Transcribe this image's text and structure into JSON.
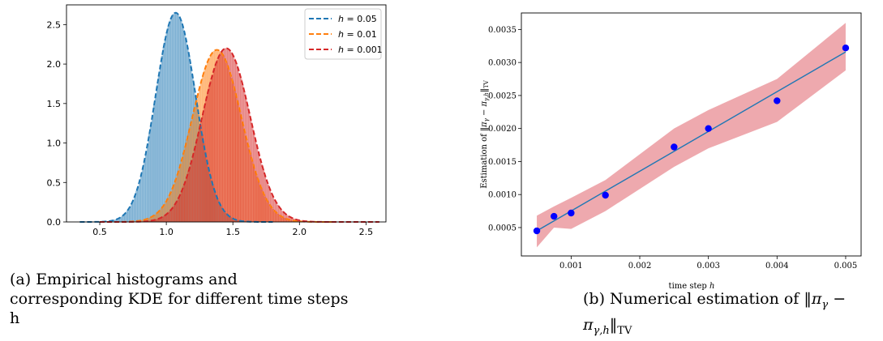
{
  "chart_data": [
    {
      "type": "area",
      "caption": "(a) Empirical histograms and corresponding KDE for different time steps h",
      "xlim": [
        0.25,
        2.65
      ],
      "ylim": [
        0,
        2.75
      ],
      "xticks": [
        "0.5",
        "1.0",
        "1.5",
        "2.0",
        "2.5"
      ],
      "yticks": [
        "0.0",
        "0.5",
        "1.0",
        "1.5",
        "2.0",
        "2.5"
      ],
      "legend_position": "top-right",
      "series": [
        {
          "name": "h = 0.05",
          "h": "0.05",
          "color": "#1f77b4",
          "mean": 1.07,
          "std": 0.15,
          "peak": 2.65,
          "support": [
            0.35,
            1.8
          ]
        },
        {
          "name": "h = 0.01",
          "h": "0.01",
          "color": "#ff7f0e",
          "mean": 1.38,
          "std": 0.185,
          "peak": 2.18,
          "support": [
            0.5,
            2.25
          ]
        },
        {
          "name": "h = 0.001",
          "h": "0.001",
          "color": "#d62728",
          "mean": 1.45,
          "std": 0.18,
          "peak": 2.2,
          "support": [
            0.5,
            2.6
          ]
        }
      ]
    },
    {
      "type": "line",
      "caption_prefix": "(b) Numerical estimation of",
      "xlabel": "time step",
      "xlabel_var": "h",
      "xlim": [
        0.000275,
        0.005225
      ],
      "ylim": [
        7e-05,
        0.00375
      ],
      "xticks": [
        "0.001",
        "0.002",
        "0.003",
        "0.004",
        "0.005"
      ],
      "yticks": [
        "0.0005",
        "0.0010",
        "0.0015",
        "0.0020",
        "0.0025",
        "0.0030",
        "0.0035"
      ],
      "x": [
        0.0005,
        0.00075,
        0.001,
        0.0015,
        0.0025,
        0.003,
        0.004,
        0.005
      ],
      "y": [
        0.00045,
        0.00067,
        0.00072,
        0.00099,
        0.00172,
        0.002,
        0.00242,
        0.00322
      ],
      "fit": [
        [
          0.0005,
          0.00045
        ],
        [
          0.005,
          0.00316
        ]
      ],
      "band_lower": [
        0.0002,
        0.0005,
        0.00048,
        0.00075,
        0.00142,
        0.0017,
        0.0021,
        0.00288
      ],
      "band_upper": [
        0.00068,
        0.00082,
        0.00095,
        0.00122,
        0.002,
        0.00228,
        0.00275,
        0.0036
      ],
      "colors": {
        "points": "#0000ff",
        "line": "#1f77b4",
        "band": "#e8888f"
      }
    }
  ]
}
